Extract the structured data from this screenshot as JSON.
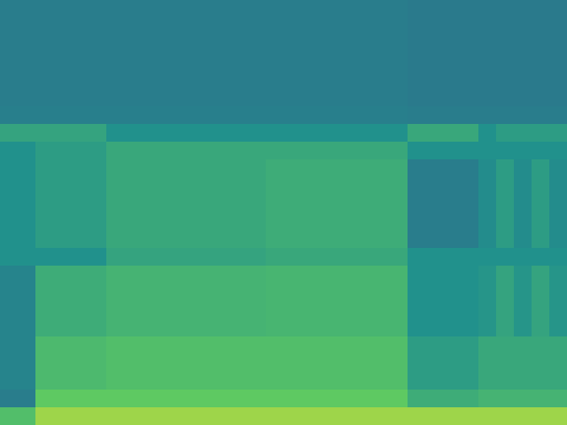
{
  "chart_data": {
    "type": "heatmap",
    "tick_labels": false,
    "xlim": [
      0,
      32
    ],
    "ylim": [
      0,
      24
    ],
    "color_range": [
      0,
      1
    ],
    "cells": [
      [
        0.42,
        0.42,
        0.42,
        0.42,
        0.42,
        0.42,
        0.42,
        0.42,
        0.42,
        0.42,
        0.42,
        0.42,
        0.42,
        0.42,
        0.42,
        0.42,
        0.42,
        0.42,
        0.42,
        0.42,
        0.42,
        0.42,
        0.42,
        0.41,
        0.41,
        0.41,
        0.41,
        0.41,
        0.41,
        0.41,
        0.41,
        0.41
      ],
      [
        0.42,
        0.42,
        0.42,
        0.42,
        0.42,
        0.42,
        0.42,
        0.42,
        0.42,
        0.42,
        0.42,
        0.42,
        0.42,
        0.42,
        0.42,
        0.42,
        0.42,
        0.42,
        0.42,
        0.42,
        0.42,
        0.42,
        0.42,
        0.41,
        0.41,
        0.41,
        0.41,
        0.41,
        0.41,
        0.41,
        0.41,
        0.41
      ],
      [
        0.42,
        0.42,
        0.42,
        0.42,
        0.42,
        0.42,
        0.42,
        0.42,
        0.42,
        0.42,
        0.42,
        0.42,
        0.42,
        0.42,
        0.42,
        0.42,
        0.42,
        0.42,
        0.42,
        0.42,
        0.42,
        0.42,
        0.42,
        0.41,
        0.41,
        0.41,
        0.41,
        0.41,
        0.41,
        0.41,
        0.41,
        0.41
      ],
      [
        0.42,
        0.42,
        0.42,
        0.42,
        0.42,
        0.42,
        0.42,
        0.42,
        0.42,
        0.42,
        0.42,
        0.42,
        0.42,
        0.42,
        0.42,
        0.42,
        0.42,
        0.42,
        0.42,
        0.42,
        0.42,
        0.42,
        0.42,
        0.41,
        0.41,
        0.41,
        0.41,
        0.41,
        0.41,
        0.41,
        0.41,
        0.41
      ],
      [
        0.42,
        0.42,
        0.42,
        0.42,
        0.42,
        0.42,
        0.42,
        0.42,
        0.42,
        0.42,
        0.42,
        0.42,
        0.42,
        0.42,
        0.42,
        0.42,
        0.42,
        0.42,
        0.42,
        0.42,
        0.42,
        0.42,
        0.42,
        0.41,
        0.41,
        0.41,
        0.41,
        0.41,
        0.41,
        0.41,
        0.41,
        0.41
      ],
      [
        0.42,
        0.42,
        0.42,
        0.42,
        0.42,
        0.42,
        0.42,
        0.42,
        0.42,
        0.42,
        0.42,
        0.42,
        0.42,
        0.42,
        0.42,
        0.42,
        0.42,
        0.42,
        0.42,
        0.42,
        0.42,
        0.42,
        0.42,
        0.41,
        0.41,
        0.41,
        0.41,
        0.41,
        0.41,
        0.41,
        0.41,
        0.41
      ],
      [
        0.43,
        0.43,
        0.43,
        0.43,
        0.43,
        0.43,
        0.43,
        0.43,
        0.43,
        0.43,
        0.43,
        0.43,
        0.43,
        0.43,
        0.43,
        0.43,
        0.43,
        0.43,
        0.43,
        0.43,
        0.43,
        0.43,
        0.43,
        0.42,
        0.42,
        0.42,
        0.42,
        0.42,
        0.42,
        0.42,
        0.42,
        0.42
      ],
      [
        0.58,
        0.58,
        0.58,
        0.58,
        0.58,
        0.58,
        0.5,
        0.5,
        0.5,
        0.5,
        0.5,
        0.5,
        0.5,
        0.5,
        0.5,
        0.5,
        0.5,
        0.5,
        0.5,
        0.5,
        0.5,
        0.5,
        0.5,
        0.6,
        0.6,
        0.6,
        0.6,
        0.5,
        0.55,
        0.55,
        0.55,
        0.55
      ],
      [
        0.5,
        0.5,
        0.55,
        0.55,
        0.55,
        0.55,
        0.6,
        0.6,
        0.6,
        0.6,
        0.6,
        0.6,
        0.6,
        0.6,
        0.6,
        0.6,
        0.6,
        0.6,
        0.6,
        0.6,
        0.6,
        0.6,
        0.6,
        0.5,
        0.5,
        0.5,
        0.5,
        0.5,
        0.5,
        0.5,
        0.5,
        0.5
      ],
      [
        0.5,
        0.5,
        0.55,
        0.55,
        0.55,
        0.55,
        0.6,
        0.6,
        0.6,
        0.6,
        0.6,
        0.6,
        0.6,
        0.6,
        0.6,
        0.62,
        0.62,
        0.62,
        0.62,
        0.62,
        0.62,
        0.62,
        0.62,
        0.42,
        0.42,
        0.42,
        0.42,
        0.48,
        0.55,
        0.48,
        0.55,
        0.48
      ],
      [
        0.5,
        0.5,
        0.55,
        0.55,
        0.55,
        0.55,
        0.6,
        0.6,
        0.6,
        0.6,
        0.6,
        0.6,
        0.6,
        0.6,
        0.6,
        0.62,
        0.62,
        0.62,
        0.62,
        0.62,
        0.62,
        0.62,
        0.62,
        0.42,
        0.42,
        0.42,
        0.42,
        0.48,
        0.55,
        0.48,
        0.55,
        0.48
      ],
      [
        0.5,
        0.5,
        0.55,
        0.55,
        0.55,
        0.55,
        0.6,
        0.6,
        0.6,
        0.6,
        0.6,
        0.6,
        0.6,
        0.6,
        0.6,
        0.62,
        0.62,
        0.62,
        0.62,
        0.62,
        0.62,
        0.62,
        0.62,
        0.42,
        0.42,
        0.42,
        0.42,
        0.48,
        0.55,
        0.48,
        0.55,
        0.48
      ],
      [
        0.5,
        0.5,
        0.55,
        0.55,
        0.55,
        0.55,
        0.6,
        0.6,
        0.6,
        0.6,
        0.6,
        0.6,
        0.6,
        0.6,
        0.6,
        0.62,
        0.62,
        0.62,
        0.62,
        0.62,
        0.62,
        0.62,
        0.62,
        0.42,
        0.42,
        0.42,
        0.42,
        0.48,
        0.55,
        0.48,
        0.55,
        0.48
      ],
      [
        0.5,
        0.5,
        0.55,
        0.55,
        0.55,
        0.55,
        0.6,
        0.6,
        0.6,
        0.6,
        0.6,
        0.6,
        0.6,
        0.6,
        0.6,
        0.62,
        0.62,
        0.62,
        0.62,
        0.62,
        0.62,
        0.62,
        0.62,
        0.42,
        0.42,
        0.42,
        0.42,
        0.48,
        0.55,
        0.48,
        0.55,
        0.48
      ],
      [
        0.5,
        0.5,
        0.5,
        0.5,
        0.5,
        0.5,
        0.58,
        0.58,
        0.58,
        0.58,
        0.58,
        0.58,
        0.58,
        0.58,
        0.58,
        0.6,
        0.6,
        0.6,
        0.6,
        0.6,
        0.6,
        0.6,
        0.6,
        0.5,
        0.5,
        0.5,
        0.5,
        0.5,
        0.5,
        0.5,
        0.5,
        0.5
      ],
      [
        0.45,
        0.45,
        0.62,
        0.62,
        0.62,
        0.62,
        0.65,
        0.65,
        0.65,
        0.65,
        0.65,
        0.65,
        0.65,
        0.65,
        0.65,
        0.66,
        0.66,
        0.66,
        0.66,
        0.66,
        0.66,
        0.66,
        0.66,
        0.5,
        0.5,
        0.5,
        0.5,
        0.52,
        0.58,
        0.52,
        0.58,
        0.52
      ],
      [
        0.45,
        0.45,
        0.62,
        0.62,
        0.62,
        0.62,
        0.65,
        0.65,
        0.65,
        0.65,
        0.65,
        0.65,
        0.65,
        0.65,
        0.65,
        0.66,
        0.66,
        0.66,
        0.66,
        0.66,
        0.66,
        0.66,
        0.66,
        0.5,
        0.5,
        0.5,
        0.5,
        0.52,
        0.58,
        0.52,
        0.58,
        0.52
      ],
      [
        0.45,
        0.45,
        0.62,
        0.62,
        0.62,
        0.62,
        0.65,
        0.65,
        0.65,
        0.65,
        0.65,
        0.65,
        0.65,
        0.65,
        0.65,
        0.66,
        0.66,
        0.66,
        0.66,
        0.66,
        0.66,
        0.66,
        0.66,
        0.5,
        0.5,
        0.5,
        0.5,
        0.52,
        0.58,
        0.52,
        0.58,
        0.52
      ],
      [
        0.45,
        0.45,
        0.62,
        0.62,
        0.62,
        0.62,
        0.65,
        0.65,
        0.65,
        0.65,
        0.65,
        0.65,
        0.65,
        0.65,
        0.65,
        0.66,
        0.66,
        0.66,
        0.66,
        0.66,
        0.66,
        0.66,
        0.66,
        0.5,
        0.5,
        0.5,
        0.5,
        0.52,
        0.58,
        0.52,
        0.58,
        0.52
      ],
      [
        0.45,
        0.45,
        0.68,
        0.68,
        0.68,
        0.68,
        0.7,
        0.7,
        0.7,
        0.7,
        0.7,
        0.7,
        0.7,
        0.7,
        0.7,
        0.7,
        0.7,
        0.7,
        0.7,
        0.7,
        0.7,
        0.7,
        0.7,
        0.55,
        0.55,
        0.55,
        0.55,
        0.6,
        0.6,
        0.6,
        0.6,
        0.6
      ],
      [
        0.45,
        0.45,
        0.68,
        0.68,
        0.68,
        0.68,
        0.7,
        0.7,
        0.7,
        0.7,
        0.7,
        0.7,
        0.7,
        0.7,
        0.7,
        0.7,
        0.7,
        0.7,
        0.7,
        0.7,
        0.7,
        0.7,
        0.7,
        0.55,
        0.55,
        0.55,
        0.55,
        0.6,
        0.6,
        0.6,
        0.6,
        0.6
      ],
      [
        0.45,
        0.45,
        0.68,
        0.68,
        0.68,
        0.68,
        0.7,
        0.7,
        0.7,
        0.7,
        0.7,
        0.7,
        0.7,
        0.7,
        0.7,
        0.7,
        0.7,
        0.7,
        0.7,
        0.7,
        0.7,
        0.7,
        0.7,
        0.55,
        0.55,
        0.55,
        0.55,
        0.6,
        0.6,
        0.6,
        0.6,
        0.6
      ],
      [
        0.42,
        0.42,
        0.75,
        0.75,
        0.75,
        0.75,
        0.75,
        0.75,
        0.75,
        0.75,
        0.75,
        0.75,
        0.75,
        0.75,
        0.75,
        0.75,
        0.75,
        0.75,
        0.75,
        0.75,
        0.75,
        0.75,
        0.75,
        0.62,
        0.62,
        0.62,
        0.62,
        0.65,
        0.65,
        0.65,
        0.65,
        0.65
      ],
      [
        0.7,
        0.7,
        0.85,
        0.85,
        0.85,
        0.85,
        0.85,
        0.85,
        0.85,
        0.85,
        0.85,
        0.85,
        0.85,
        0.85,
        0.85,
        0.85,
        0.85,
        0.85,
        0.85,
        0.85,
        0.85,
        0.85,
        0.85,
        0.85,
        0.85,
        0.85,
        0.85,
        0.85,
        0.85,
        0.85,
        0.85,
        0.85
      ]
    ]
  }
}
